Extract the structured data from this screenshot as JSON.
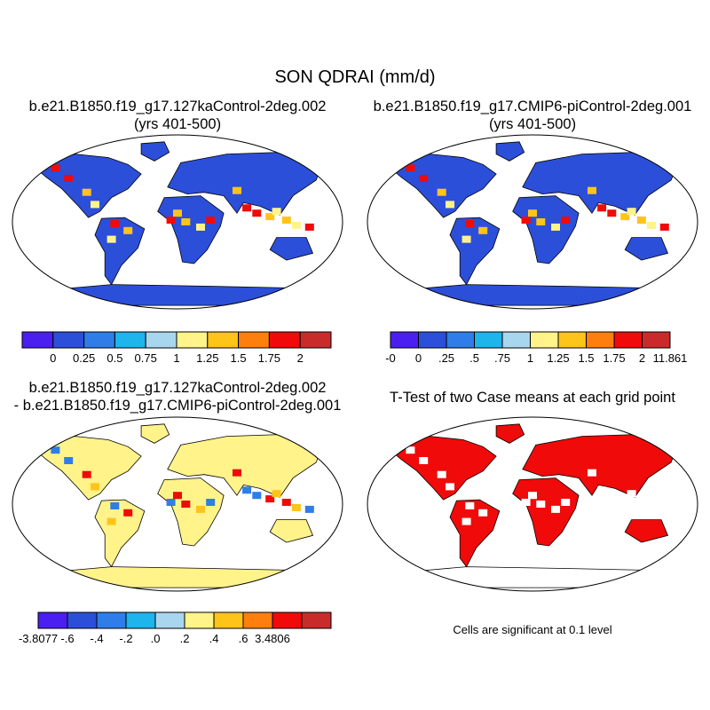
{
  "chart_data": [
    {
      "type": "heatmap",
      "panel": "a",
      "title_line1": "b.e21.B1850.f19_g17.127kaControl-2deg.002",
      "title_line2": "(yrs 401-500)",
      "colorbar": {
        "colors": [
          "#4a1ff0",
          "#2c4fd9",
          "#2f7de8",
          "#1eb4ec",
          "#a8d6ee",
          "#fff38a",
          "#ffc41a",
          "#ff7f0e",
          "#f00a0a",
          "#c92b2b"
        ],
        "ticks": [
          "0",
          "0.25",
          "0.5",
          "0.75",
          "1",
          "1.25",
          "1.5",
          "1.75",
          "2"
        ]
      },
      "map_fill": "#2c4fd9"
    },
    {
      "type": "heatmap",
      "panel": "b",
      "title_line1": "b.e21.B1850.f19_g17.CMIP6-piControl-2deg.001",
      "title_line2": "(yrs 401-500)",
      "colorbar": {
        "colors": [
          "#4a1ff0",
          "#2c4fd9",
          "#2f7de8",
          "#1eb4ec",
          "#a8d6ee",
          "#fff38a",
          "#ffc41a",
          "#ff7f0e",
          "#f00a0a",
          "#c92b2b"
        ],
        "ticks": [
          "-0",
          "0",
          ".25",
          ".5",
          ".75",
          "1",
          "1.25",
          "1.5",
          "1.75",
          "2",
          "11.861"
        ]
      },
      "map_fill": "#2c4fd9"
    },
    {
      "type": "heatmap",
      "panel": "c",
      "title_line1": "b.e21.B1850.f19_g17.127kaControl-2deg.002",
      "title_line2": "- b.e21.B1850.f19_g17.CMIP6-piControl-2deg.001",
      "colorbar": {
        "colors": [
          "#4a1ff0",
          "#2c4fd9",
          "#2f7de8",
          "#1eb4ec",
          "#a8d6ee",
          "#fff38a",
          "#ffc41a",
          "#ff7f0e",
          "#f00a0a",
          "#c92b2b"
        ],
        "ticks": [
          "-3.8077",
          "-.6",
          "-.4",
          "-.2",
          ".0",
          ".2",
          ".4",
          ".6",
          "3.4806"
        ]
      },
      "map_fill": "#fff38a"
    },
    {
      "type": "heatmap",
      "panel": "d",
      "title_line1": "T-Test of two Case means at each grid point",
      "map_fill": "#f00a0a",
      "note": "Cells are significant at 0.1 level"
    }
  ],
  "main_title": "SON QDRAI (mm/d)"
}
